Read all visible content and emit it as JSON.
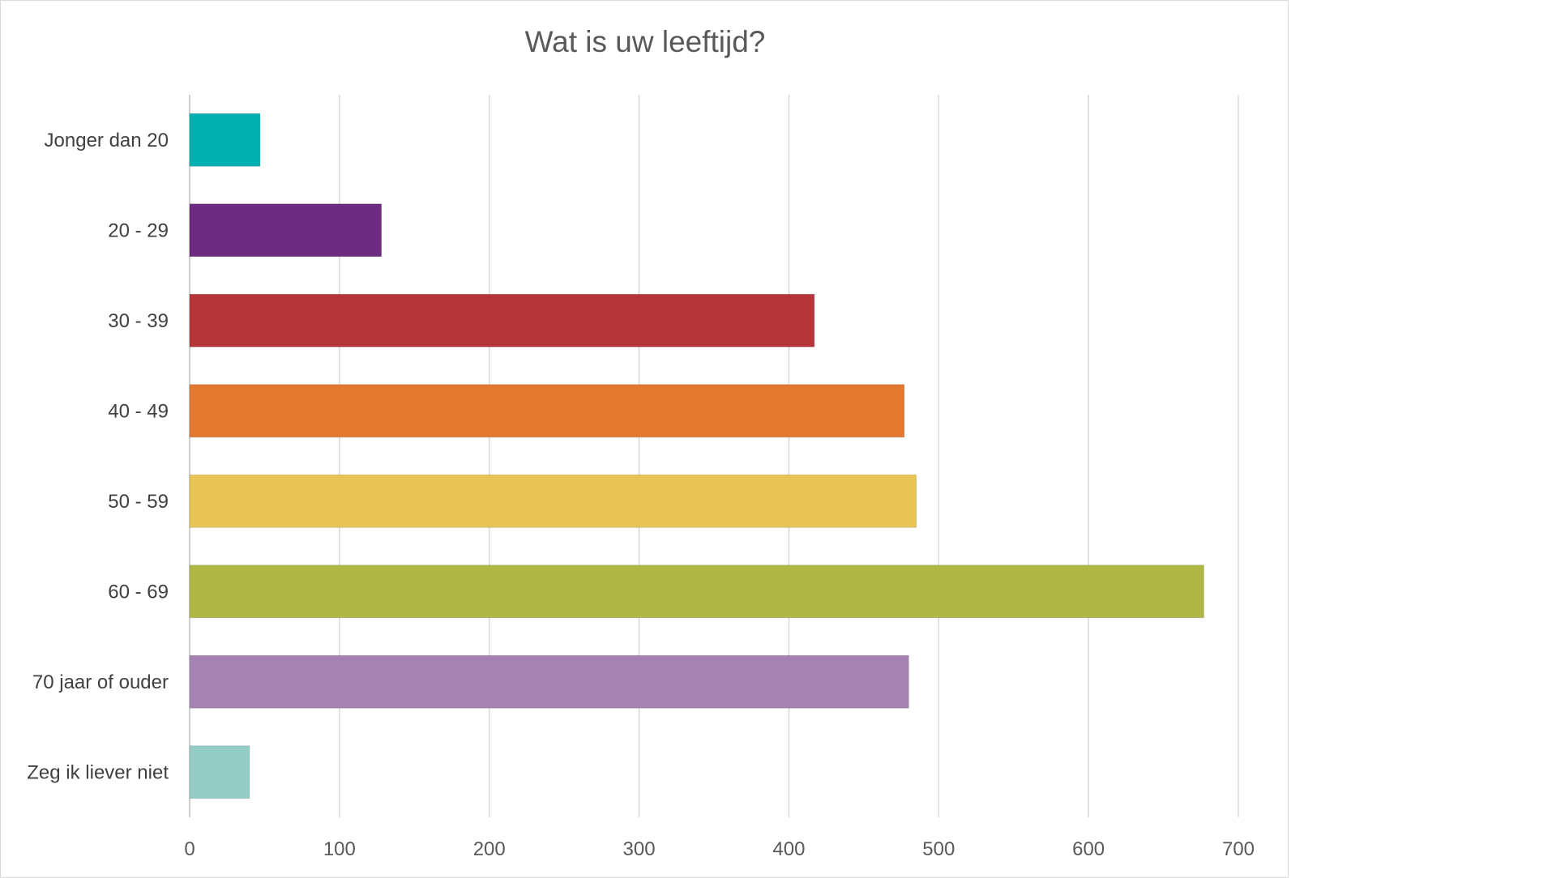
{
  "chart_data": {
    "type": "bar",
    "orientation": "horizontal",
    "title": "Wat is uw leeftijd?",
    "xlabel": "",
    "ylabel": "",
    "categories": [
      "Jonger dan 20",
      "20 - 29",
      "30 - 39",
      "40 - 49",
      "50 - 59",
      "60 - 69",
      "70 jaar of ouder",
      "Zeg ik liever niet"
    ],
    "values": [
      47,
      128,
      417,
      477,
      485,
      677,
      480,
      40
    ],
    "colors": [
      "#00b0b0",
      "#6c2a80",
      "#b5353b",
      "#e4782f",
      "#e8c454",
      "#afb844",
      "#a582b2",
      "#93cdc6"
    ],
    "xlim": [
      0,
      700
    ],
    "xticks": [
      "0",
      "100",
      "200",
      "300",
      "400",
      "500",
      "600",
      "700"
    ],
    "grid": "vertical",
    "legend": "none"
  }
}
